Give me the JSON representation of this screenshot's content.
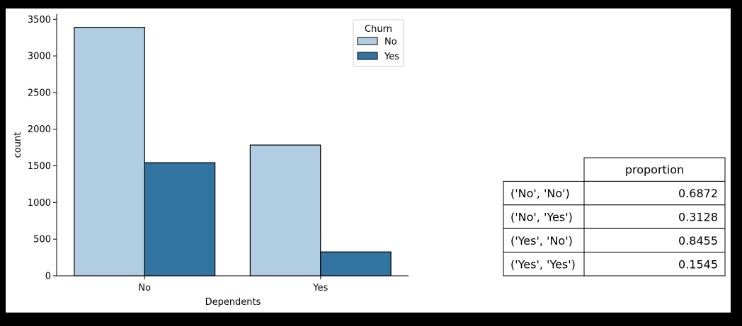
{
  "chart_data": [
    {
      "type": "bar",
      "xlabel": "Dependents",
      "ylabel": "count",
      "categories": [
        "No",
        "Yes"
      ],
      "series": [
        {
          "name": "No",
          "values": [
            3390,
            1784
          ]
        },
        {
          "name": "Yes",
          "values": [
            1543,
            326
          ]
        }
      ],
      "ylim": [
        0,
        3570
      ],
      "yticks": [
        0,
        500,
        1000,
        1500,
        2000,
        2500,
        3000,
        3500
      ],
      "grid": false,
      "legend": {
        "title": "Churn",
        "placement": "top-right"
      },
      "colors": {
        "No": "#b0cde1",
        "Yes": "#3274a1"
      }
    },
    {
      "type": "table",
      "column_header": "proportion",
      "rows": [
        {
          "label": "('No', 'No')",
          "value": "0.6872"
        },
        {
          "label": "('No', 'Yes')",
          "value": "0.3128"
        },
        {
          "label": "('Yes', 'No')",
          "value": "0.8455"
        },
        {
          "label": "('Yes', 'Yes')",
          "value": "0.1545"
        }
      ]
    }
  ]
}
